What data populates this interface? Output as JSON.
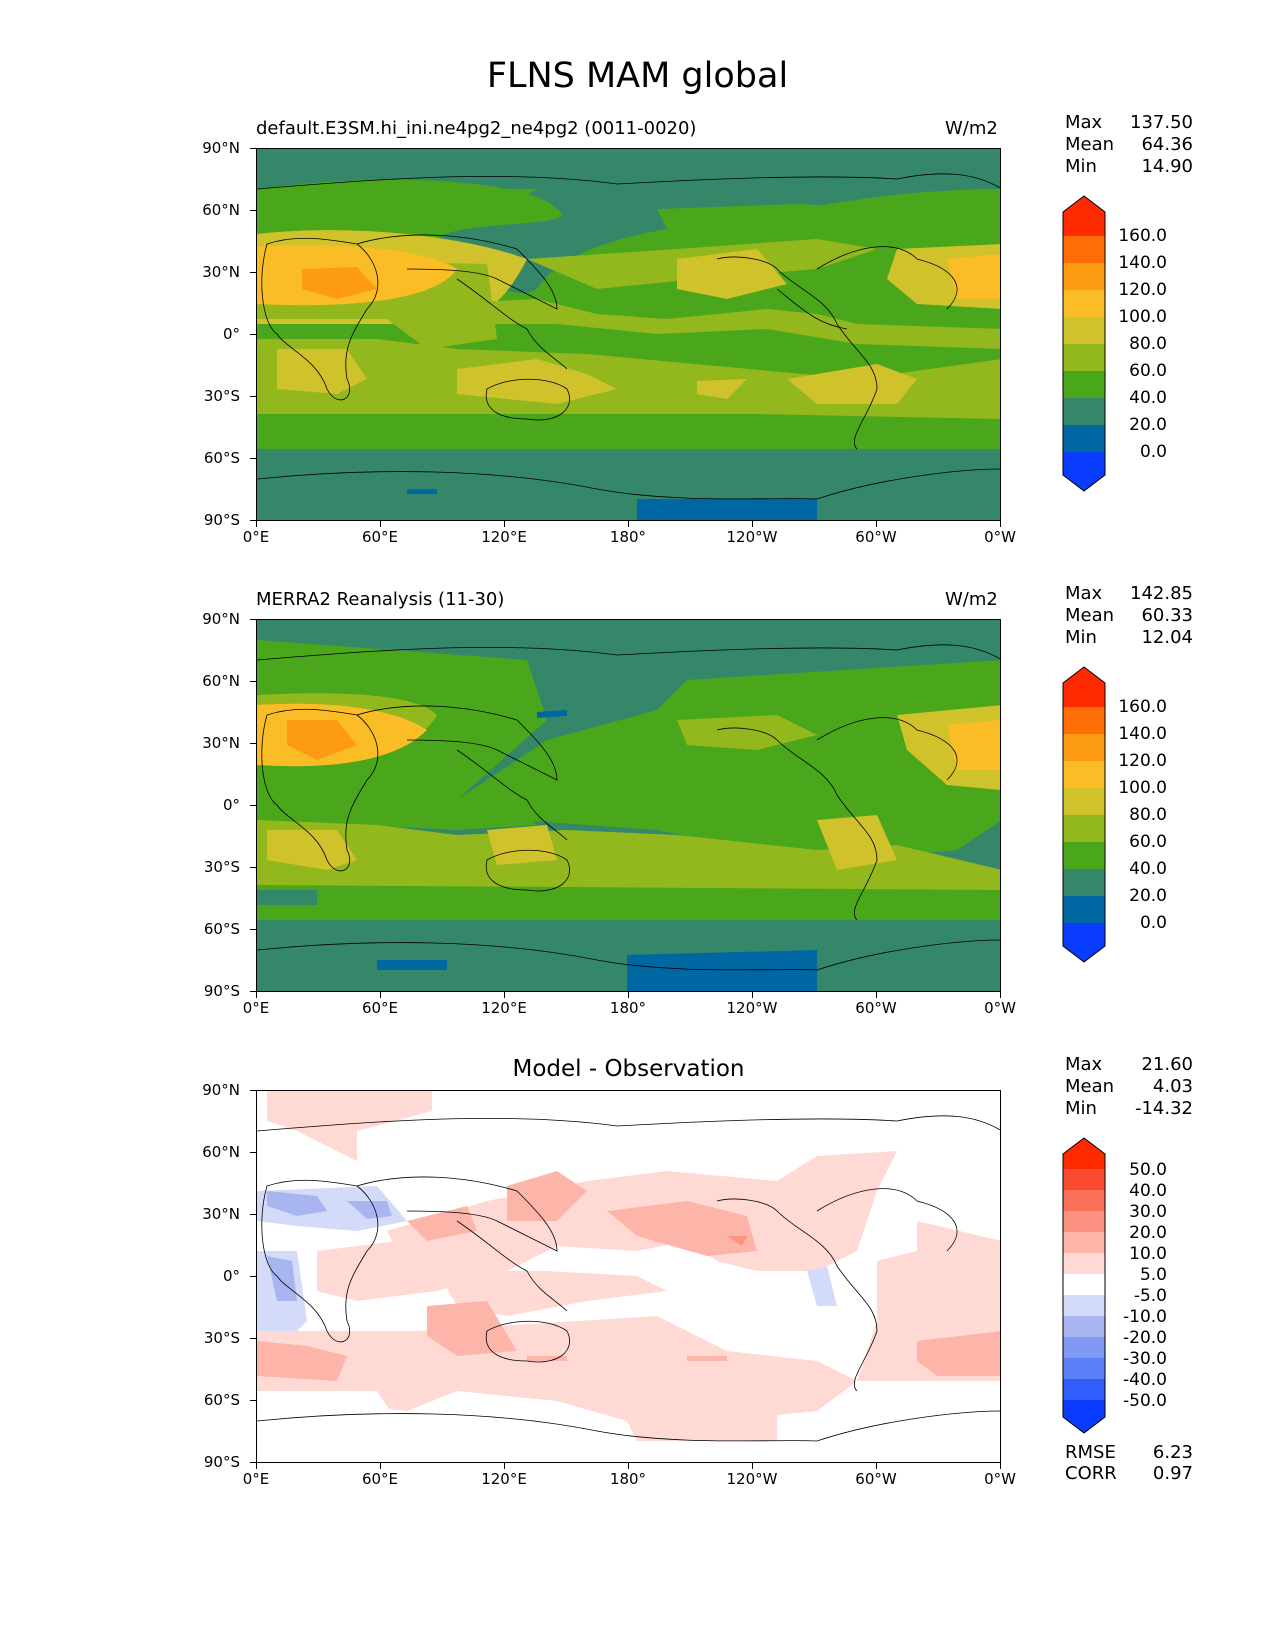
{
  "title": "FLNS MAM global",
  "panels": [
    {
      "left_title": "default.E3SM.hi_ini.ne4pg2_ne4pg2 (0011-0020)",
      "right_title": "W/m2",
      "stats": {
        "max_label": "Max",
        "max": "137.50",
        "mean_label": "Mean",
        "mean": "64.36",
        "min_label": "Min",
        "min": "14.90"
      },
      "colorbar_labels": [
        "160.0",
        "140.0",
        "120.0",
        "100.0",
        "80.0",
        "60.0",
        "40.0",
        "20.0",
        "0.0"
      ]
    },
    {
      "left_title": "MERRA2 Reanalysis (11-30)",
      "right_title": "W/m2",
      "stats": {
        "max_label": "Max",
        "max": "142.85",
        "mean_label": "Mean",
        "mean": "60.33",
        "min_label": "Min",
        "min": "12.04"
      },
      "colorbar_labels": [
        "160.0",
        "140.0",
        "120.0",
        "100.0",
        "80.0",
        "60.0",
        "40.0",
        "20.0",
        "0.0"
      ]
    },
    {
      "center_title": "Model - Observation",
      "stats": {
        "max_label": "Max",
        "max": "21.60",
        "mean_label": "Mean",
        "mean": "4.03",
        "min_label": "Min",
        "min": "-14.32"
      },
      "colorbar_labels": [
        "50.0",
        "40.0",
        "30.0",
        "20.0",
        "10.0",
        "5.0",
        "-5.0",
        "-10.0",
        "-20.0",
        "-30.0",
        "-40.0",
        "-50.0"
      ],
      "rmse_label": "RMSE",
      "rmse": "6.23",
      "corr_label": "CORR",
      "corr": "0.97"
    }
  ],
  "axes": {
    "lat_ticks": [
      "90°N",
      "60°N",
      "30°N",
      "0°",
      "30°S",
      "60°S",
      "90°S"
    ],
    "lon_ticks": [
      "0°E",
      "60°E",
      "120°E",
      "180°",
      "120°W",
      "60°W",
      "0°W"
    ]
  },
  "colors": {
    "field_scale": [
      "#0a3cff",
      "#0067a3",
      "#35876a",
      "#4aa61a",
      "#93b81d",
      "#cfc22b",
      "#fbbd26",
      "#fd9b12",
      "#ff6d07",
      "#ff2a00"
    ],
    "diff_scale": [
      "#0a3cff",
      "#2f5efc",
      "#5a80f8",
      "#8199f4",
      "#a8b5f1",
      "#d3dbf8",
      "#ffffff",
      "#ffd9d4",
      "#fdb5aa",
      "#fb9380",
      "#f96f57",
      "#f84a2e",
      "#ff2a00"
    ]
  }
}
